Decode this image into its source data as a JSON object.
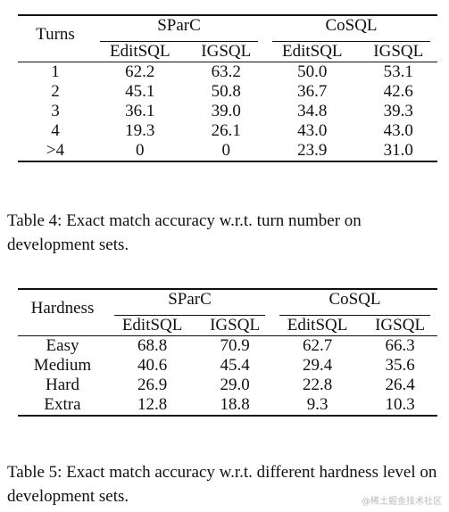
{
  "table1": {
    "row_header": "Turns",
    "groups": [
      "SParC",
      "CoSQL"
    ],
    "subheaders": [
      "EditSQL",
      "IGSQL",
      "EditSQL",
      "IGSQL"
    ],
    "rows": [
      {
        "label": "1",
        "values": [
          "62.2",
          "63.2",
          "50.0",
          "53.1"
        ]
      },
      {
        "label": "2",
        "values": [
          "45.1",
          "50.8",
          "36.7",
          "42.6"
        ]
      },
      {
        "label": "3",
        "values": [
          "36.1",
          "39.0",
          "34.8",
          "39.3"
        ]
      },
      {
        "label": "4",
        "values": [
          "19.3",
          "26.1",
          "43.0",
          "43.0"
        ]
      },
      {
        "label": ">4",
        "values": [
          "0",
          "0",
          "23.9",
          "31.0"
        ]
      }
    ],
    "caption": "Table 4:  Exact match accuracy w.r.t.  turn number on development sets."
  },
  "table2": {
    "row_header": "Hardness",
    "groups": [
      "SParC",
      "CoSQL"
    ],
    "subheaders": [
      "EditSQL",
      "IGSQL",
      "EditSQL",
      "IGSQL"
    ],
    "rows": [
      {
        "label": "Easy",
        "values": [
          "68.8",
          "70.9",
          "62.7",
          "66.3"
        ]
      },
      {
        "label": "Medium",
        "values": [
          "40.6",
          "45.4",
          "29.4",
          "35.6"
        ]
      },
      {
        "label": "Hard",
        "values": [
          "26.9",
          "29.0",
          "22.8",
          "26.4"
        ]
      },
      {
        "label": "Extra",
        "values": [
          "12.8",
          "18.8",
          "9.3",
          "10.3"
        ]
      }
    ],
    "caption": "Table 5: Exact match accuracy w.r.t. different hardness level on development sets."
  },
  "watermark": "@稀土掘金技术社区"
}
